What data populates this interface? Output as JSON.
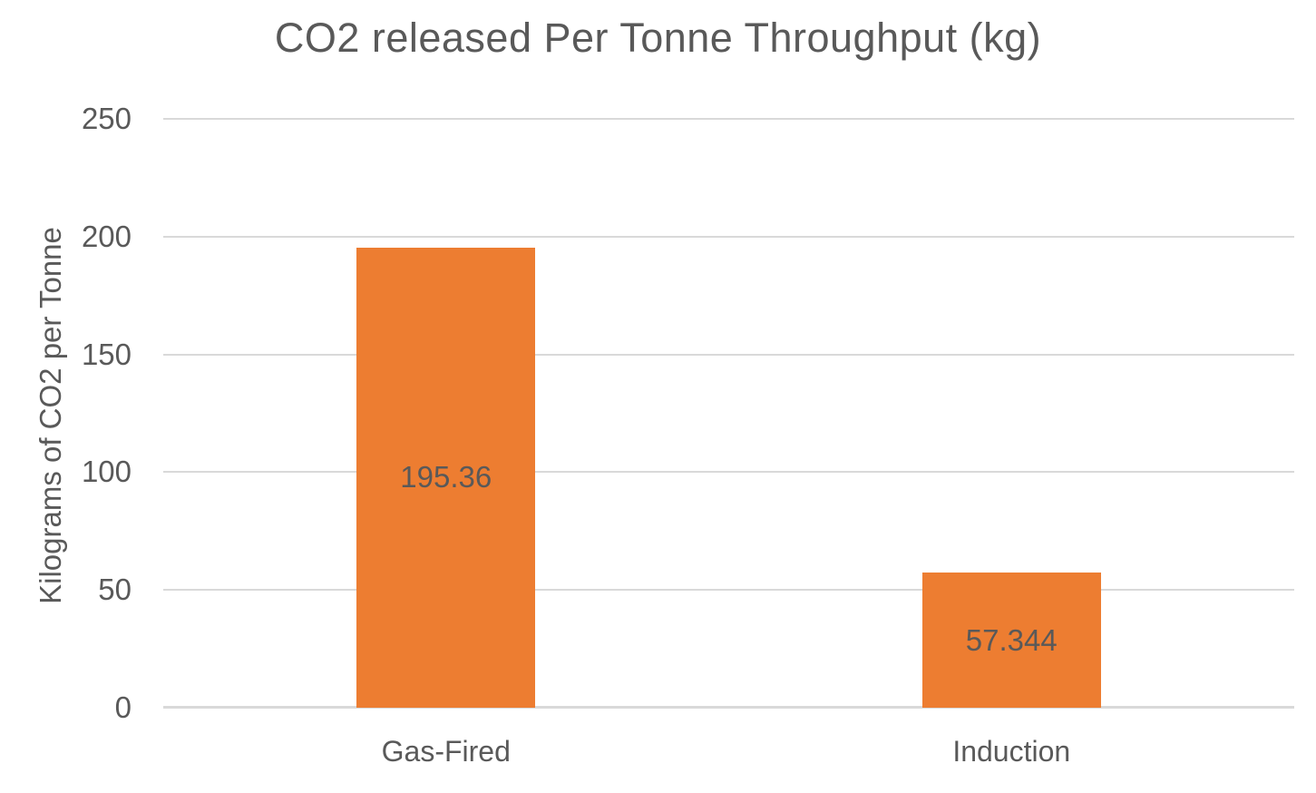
{
  "chart_data": {
    "type": "bar",
    "title": "CO2 released Per Tonne Throughput (kg)",
    "categories": [
      "Gas-Fired",
      "Induction"
    ],
    "values": [
      195.36,
      57.344
    ],
    "data_labels": [
      "195.36",
      "57.344"
    ],
    "xlabel": "",
    "ylabel": "Kilograms of CO2 per Tonne",
    "ylim": [
      0,
      250
    ],
    "yticks": [
      0,
      50,
      100,
      150,
      200,
      250
    ],
    "grid": true,
    "legend": false,
    "data_labels_position": "center",
    "colors": {
      "bar": "#ed7d31",
      "text": "#595959",
      "gridline": "#d9d9d9",
      "axis_line": "#d9d9d9",
      "background": "#ffffff"
    }
  }
}
